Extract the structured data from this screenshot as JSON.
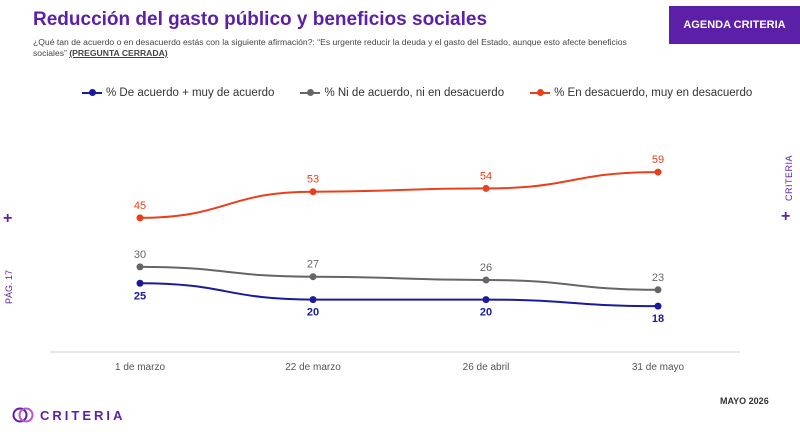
{
  "header": {
    "title": "Reducción del gasto público y beneficios sociales",
    "question": "¿Qué tan de acuerdo o en desacuerdo estás con la siguiente afirmación?: “Es urgente reducir la deuda y el gasto del Estado, aunque esto afecte beneficios sociales”",
    "question_tag": "(PREGUNTA CERRADA)",
    "brand_box": "AGENDA CRITERIA"
  },
  "side": {
    "brand": "CRITERIA",
    "page": "PÁG. 17",
    "plus": "+"
  },
  "footer": {
    "logo_text": "CRITERIA",
    "date": "MAYO 2026"
  },
  "colors": {
    "accent": "#5b1fa8",
    "series_agree": "#1a1a9c",
    "series_neutral": "#666666",
    "series_disagree": "#e8401c"
  },
  "chart_data": {
    "type": "line",
    "x": [
      "1 de marzo",
      "22 de marzo",
      "26 de abril",
      "31 de mayo"
    ],
    "ylim": [
      0,
      100
    ],
    "grid": false,
    "legend": "top",
    "series": [
      {
        "name": "% De acuerdo + muy de acuerdo",
        "values": [
          25,
          20,
          20,
          18
        ],
        "color": "#1a1a9c",
        "label_pos": "below"
      },
      {
        "name": "% Ni de acuerdo, ni en desacuerdo",
        "values": [
          30,
          27,
          26,
          23
        ],
        "color": "#666666",
        "label_pos": "above"
      },
      {
        "name": "% En desacuerdo, muy en desacuerdo",
        "values": [
          45,
          53,
          54,
          59
        ],
        "color": "#e8401c",
        "label_pos": "above"
      }
    ]
  }
}
